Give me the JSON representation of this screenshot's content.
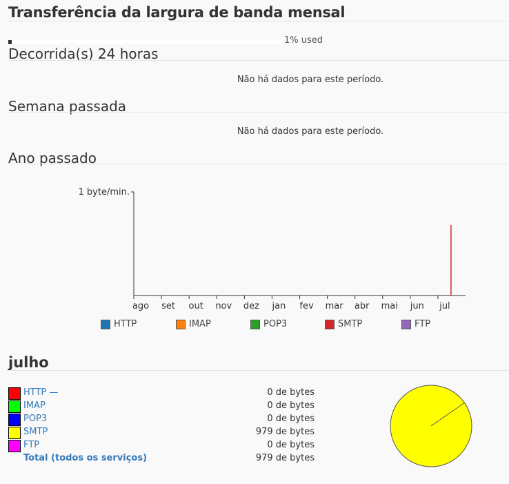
{
  "page": {
    "title": "Transferência da largura de banda mensal",
    "usage_label": "1% used",
    "usage_fraction": 0.01
  },
  "sections": {
    "day": {
      "title": "Decorrida(s) 24 horas",
      "empty": "Não há dados para este período."
    },
    "week": {
      "title": "Semana passada",
      "empty": "Não há dados para este período."
    },
    "year": {
      "title": "Ano passado"
    }
  },
  "chart_data": {
    "type": "bar",
    "ylabel_tick": "1 byte/min.",
    "categories": [
      "ago",
      "set",
      "out",
      "nov",
      "dez",
      "jan",
      "fev",
      "mar",
      "abr",
      "mai",
      "jun",
      "jul"
    ],
    "series": [
      {
        "name": "HTTP",
        "color": "#1f77b4",
        "values": [
          0,
          0,
          0,
          0,
          0,
          0,
          0,
          0,
          0,
          0,
          0,
          0
        ]
      },
      {
        "name": "IMAP",
        "color": "#ff7f0e",
        "values": [
          0,
          0,
          0,
          0,
          0,
          0,
          0,
          0,
          0,
          0,
          0,
          0
        ]
      },
      {
        "name": "POP3",
        "color": "#2ca02c",
        "values": [
          0,
          0,
          0,
          0,
          0,
          0,
          0,
          0,
          0,
          0,
          0,
          0
        ]
      },
      {
        "name": "SMTP",
        "color": "#d62728",
        "values": [
          0,
          0,
          0,
          0,
          0,
          0,
          0,
          0,
          0,
          0,
          0,
          0.68
        ]
      },
      {
        "name": "FTP",
        "color": "#9467bd",
        "values": [
          0,
          0,
          0,
          0,
          0,
          0,
          0,
          0,
          0,
          0,
          0,
          0
        ]
      }
    ],
    "ylim": [
      0,
      1
    ],
    "legend": "bottom"
  },
  "month": {
    "title": "julho",
    "services": [
      {
        "name": "HTTP —",
        "value": "0 de bytes",
        "color": "#ff0000"
      },
      {
        "name": "IMAP",
        "value": "0 de bytes",
        "color": "#00ff00"
      },
      {
        "name": "POP3",
        "value": "0 de bytes",
        "color": "#0000ff"
      },
      {
        "name": "SMTP",
        "value": "979 de bytes",
        "color": "#ffff00"
      },
      {
        "name": "FTP",
        "value": "0 de bytes",
        "color": "#ff00ff"
      }
    ],
    "total_label": "Total (todos os serviços)",
    "total_value": "979 de bytes",
    "pie_color": "#ffff00"
  }
}
